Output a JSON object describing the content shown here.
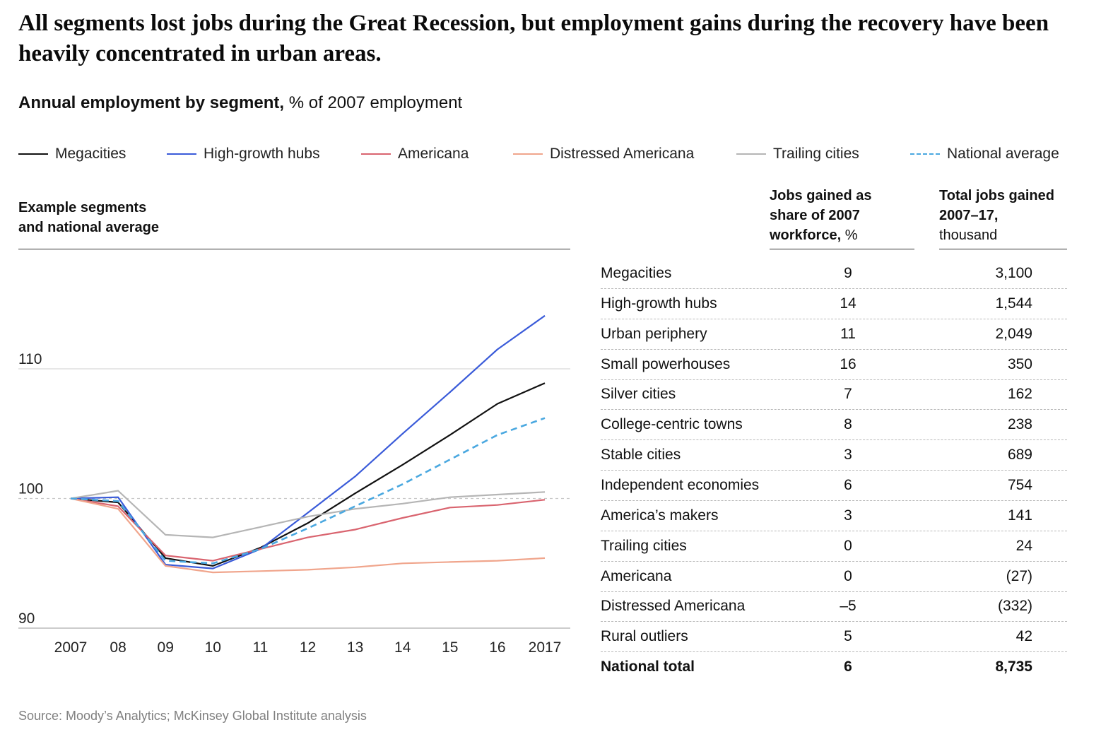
{
  "headline": "All segments lost jobs during the Great Recession, but employment gains during the recovery have been heavily concentrated in urban areas.",
  "subtitle_bold": "Annual employment by segment,",
  "subtitle_rest": " % of 2007 employment",
  "panel_label_line1": "Example segments",
  "panel_label_line2": "and national average",
  "legend": [
    {
      "label": "Megacities",
      "color": "#111111",
      "dashed": false
    },
    {
      "label": "High-growth hubs",
      "color": "#3a5bd9",
      "dashed": false
    },
    {
      "label": "Americana",
      "color": "#d9646f",
      "dashed": false
    },
    {
      "label": "Distressed Americana",
      "color": "#f0a58c",
      "dashed": false
    },
    {
      "label": "Trailing cities",
      "color": "#b5b5b5",
      "dashed": false
    },
    {
      "label": "National average",
      "color": "#4aa8e0",
      "dashed": true
    }
  ],
  "chart_data": {
    "type": "line",
    "x_tick_labels": [
      "2007",
      "08",
      "09",
      "10",
      "11",
      "12",
      "13",
      "14",
      "15",
      "16",
      "2017"
    ],
    "x": [
      2007,
      2008,
      2009,
      2010,
      2011,
      2012,
      2013,
      2014,
      2015,
      2016,
      2017
    ],
    "ylim": [
      90,
      115
    ],
    "yticks": [
      90,
      100,
      110
    ],
    "gridlines": [
      110
    ],
    "reference_line": 100,
    "series": [
      {
        "name": "Megacities",
        "color": "#111111",
        "dashed": false,
        "values": [
          100,
          99.7,
          95.4,
          94.8,
          96.2,
          98.1,
          100.4,
          102.6,
          104.9,
          107.3,
          108.9
        ]
      },
      {
        "name": "High-growth hubs",
        "color": "#3a5bd9",
        "dashed": false,
        "values": [
          100,
          100.1,
          94.9,
          94.6,
          96.1,
          98.9,
          101.7,
          105.0,
          108.2,
          111.5,
          114.1
        ]
      },
      {
        "name": "Americana",
        "color": "#d9646f",
        "dashed": false,
        "values": [
          100,
          99.4,
          95.6,
          95.2,
          96.1,
          97.0,
          97.6,
          98.5,
          99.3,
          99.5,
          99.9
        ]
      },
      {
        "name": "Distressed Americana",
        "color": "#f0a58c",
        "dashed": false,
        "values": [
          100,
          99.2,
          94.8,
          94.3,
          94.4,
          94.5,
          94.7,
          95.0,
          95.1,
          95.2,
          95.4
        ]
      },
      {
        "name": "Trailing cities",
        "color": "#b5b5b5",
        "dashed": false,
        "values": [
          100,
          100.6,
          97.2,
          97.0,
          97.8,
          98.6,
          99.2,
          99.6,
          100.1,
          100.3,
          100.5
        ]
      },
      {
        "name": "National average",
        "color": "#4aa8e0",
        "dashed": true,
        "values": [
          100,
          99.8,
          95.2,
          95.0,
          96.1,
          97.7,
          99.4,
          101.1,
          103.0,
          104.9,
          106.2
        ]
      }
    ]
  },
  "table": {
    "header_share_bold": "Jobs gained as share of 2007 workforce,",
    "header_share_rest": " %",
    "header_total_bold": "Total jobs gained 2007–17,",
    "header_total_rest": " thousand",
    "rows": [
      {
        "name": "Megacities",
        "share": "9",
        "total": "3,100"
      },
      {
        "name": "High-growth hubs",
        "share": "14",
        "total": "1,544"
      },
      {
        "name": "Urban periphery",
        "share": "11",
        "total": "2,049"
      },
      {
        "name": "Small powerhouses",
        "share": "16",
        "total": "350"
      },
      {
        "name": "Silver cities",
        "share": "7",
        "total": "162"
      },
      {
        "name": "College-centric towns",
        "share": "8",
        "total": "238"
      },
      {
        "name": "Stable cities",
        "share": "3",
        "total": "689"
      },
      {
        "name": "Independent economies",
        "share": "6",
        "total": "754"
      },
      {
        "name": "America’s makers",
        "share": "3",
        "total": "141"
      },
      {
        "name": "Trailing cities",
        "share": "0",
        "total": "24"
      },
      {
        "name": "Americana",
        "share": "0",
        "total": "(27)"
      },
      {
        "name": "Distressed Americana",
        "share": "–5",
        "total": "(332)"
      },
      {
        "name": "Rural outliers",
        "share": "5",
        "total": "42"
      }
    ],
    "total_row": {
      "name": "National total",
      "share": "6",
      "total": "8,735"
    }
  },
  "source": "Source: Moody’s Analytics; McKinsey Global Institute analysis"
}
